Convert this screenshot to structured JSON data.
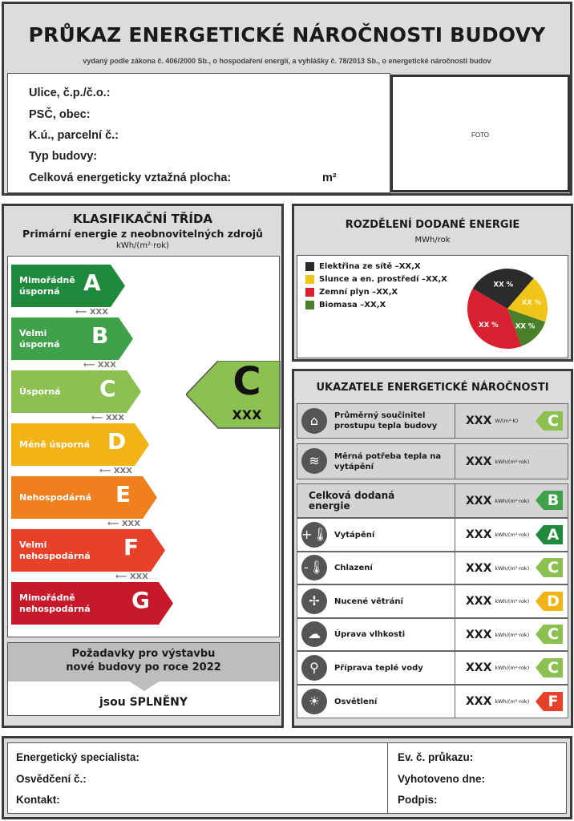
{
  "header": {
    "title": "PRŮKAZ ENERGETICKÉ NÁROČNOSTI BUDOVY",
    "subtitle": "vydaný podle zákona č. 406/2000 Sb., o hospodaření energií, a vyhlášky č. 78/2013 Sb., o energetické náročnosti budov"
  },
  "info": {
    "street": "Ulice, č.p./č.o.:",
    "zip": "PSČ, obec:",
    "cadastre": "K.ú., parcelní č.:",
    "type": "Typ budovy:",
    "area": "Celková energeticky vztažná plocha:",
    "area_unit": "m²",
    "photo": "FOTO"
  },
  "classification": {
    "title": "KLASIFIKAČNÍ TŘÍDA",
    "subtitle": "Primární energie z neobnovitelných zdrojů",
    "unit": "kWh/(m²·rok)",
    "classes": [
      {
        "letter": "A",
        "label": "Mimořádně úsporná",
        "color": "#1f8a3c",
        "threshold": "XXX"
      },
      {
        "letter": "B",
        "label": "Velmi úsporná",
        "color": "#3fa24a",
        "threshold": "XXX"
      },
      {
        "letter": "C",
        "label": "Úsporná",
        "color": "#8cc152",
        "threshold": "XXX"
      },
      {
        "letter": "D",
        "label": "Méně úsporná",
        "color": "#f2b316",
        "threshold": "XXX"
      },
      {
        "letter": "E",
        "label": "Nehospodárná",
        "color": "#f07f1d",
        "threshold": "XXX"
      },
      {
        "letter": "F",
        "label": "Velmi nehospodárná",
        "color": "#e8412a",
        "threshold": "XXX"
      },
      {
        "letter": "G",
        "label": "Mimořádně nehospodárná",
        "color": "#c8192a"
      }
    ],
    "current": {
      "letter": "C",
      "value": "XXX",
      "color": "#8cc152"
    },
    "requirements": {
      "text1": "Požadavky pro výstavbu",
      "text2": "nové budovy po roce 2022",
      "result_prefix": "jsou ",
      "result": "SPLNĚNY"
    }
  },
  "distribution": {
    "title": "ROZDĚLENÍ DODANÉ ENERGIE",
    "unit": "MWh/rok",
    "items": [
      {
        "label": "Elektřina ze sítě – ",
        "value": "XX,X",
        "color": "#2b2b2b",
        "pct_label": "XX %",
        "share": 28
      },
      {
        "label": "Slunce a en. prostředí – ",
        "value": "XX,X",
        "color": "#f0c419",
        "pct_label": "XX %",
        "share": 19
      },
      {
        "label": "Biomasa – ",
        "value": "XX,X",
        "color": "#4a7f2a",
        "pct_label": "XX %",
        "share": 14
      },
      {
        "label": "Zemní plyn – ",
        "value": "XX,X",
        "color": "#d92030",
        "pct_label": "XX %",
        "share": 39
      }
    ]
  },
  "indicators": {
    "title": "UKAZATELE ENERGETICKÉ NÁROČNOSTI",
    "rows": [
      {
        "icon": "house-icon",
        "glyph": "⌂",
        "label": "Průměrný součinitel prostupu tepla budovy",
        "value": "XXX",
        "unit": "W/(m²·K)",
        "class": "C",
        "color": "#8cc152",
        "bg": "#d4d4d4"
      },
      {
        "icon": "heat-demand-icon",
        "glyph": "≋",
        "label": "Měrná potřeba tepla na vytápění",
        "value": "XXX",
        "unit": "kWh/(m²·rok)",
        "bg": "#d4d4d4"
      },
      {
        "icon": "",
        "glyph": "",
        "label": "Celková dodaná energie",
        "value": "XXX",
        "unit": "kWh/(m²·rok)",
        "class": "B",
        "color": "#3fa24a",
        "bg": "#d4d4d4",
        "big": true
      },
      {
        "icon": "heating-thermometer-icon",
        "glyph": "+🌡",
        "label": "Vytápění",
        "value": "XXX",
        "unit": "kWh/(m²·rok)",
        "class": "A",
        "color": "#1f8a3c",
        "bg": "#fff"
      },
      {
        "icon": "cooling-thermometer-icon",
        "glyph": "-🌡",
        "label": "Chlazení",
        "value": "XXX",
        "unit": "kWh/(m²·rok)",
        "class": "C",
        "color": "#8cc152",
        "bg": "#fff"
      },
      {
        "icon": "fan-icon",
        "glyph": "✢",
        "label": "Nucené větrání",
        "value": "XXX",
        "unit": "kWh/(m²·rok)",
        "class": "D",
        "color": "#f2b316",
        "bg": "#fff"
      },
      {
        "icon": "humidity-icon",
        "glyph": "☁",
        "label": "Úprava vlhkosti",
        "value": "XXX",
        "unit": "kWh/(m²·rok)",
        "class": "C",
        "color": "#8cc152",
        "bg": "#fff"
      },
      {
        "icon": "water-tap-icon",
        "glyph": "⚲",
        "label": "Příprava teplé vody",
        "value": "XXX",
        "unit": "kWh/(m²·rok)",
        "class": "C",
        "color": "#8cc152",
        "bg": "#fff"
      },
      {
        "icon": "light-bulb-icon",
        "glyph": "☀",
        "label": "Osvětlení",
        "value": "XXX",
        "unit": "kWh/(m²·rok)",
        "class": "F",
        "color": "#e8412a",
        "bg": "#fff"
      }
    ]
  },
  "footer": {
    "specialist": "Energetický specialista:",
    "certificate": "Osvědčení č.:",
    "contact": "Kontakt:",
    "record_no": "Ev. č. průkazu:",
    "issued": "Vyhotoveno dne:",
    "signature": "Podpis:"
  }
}
